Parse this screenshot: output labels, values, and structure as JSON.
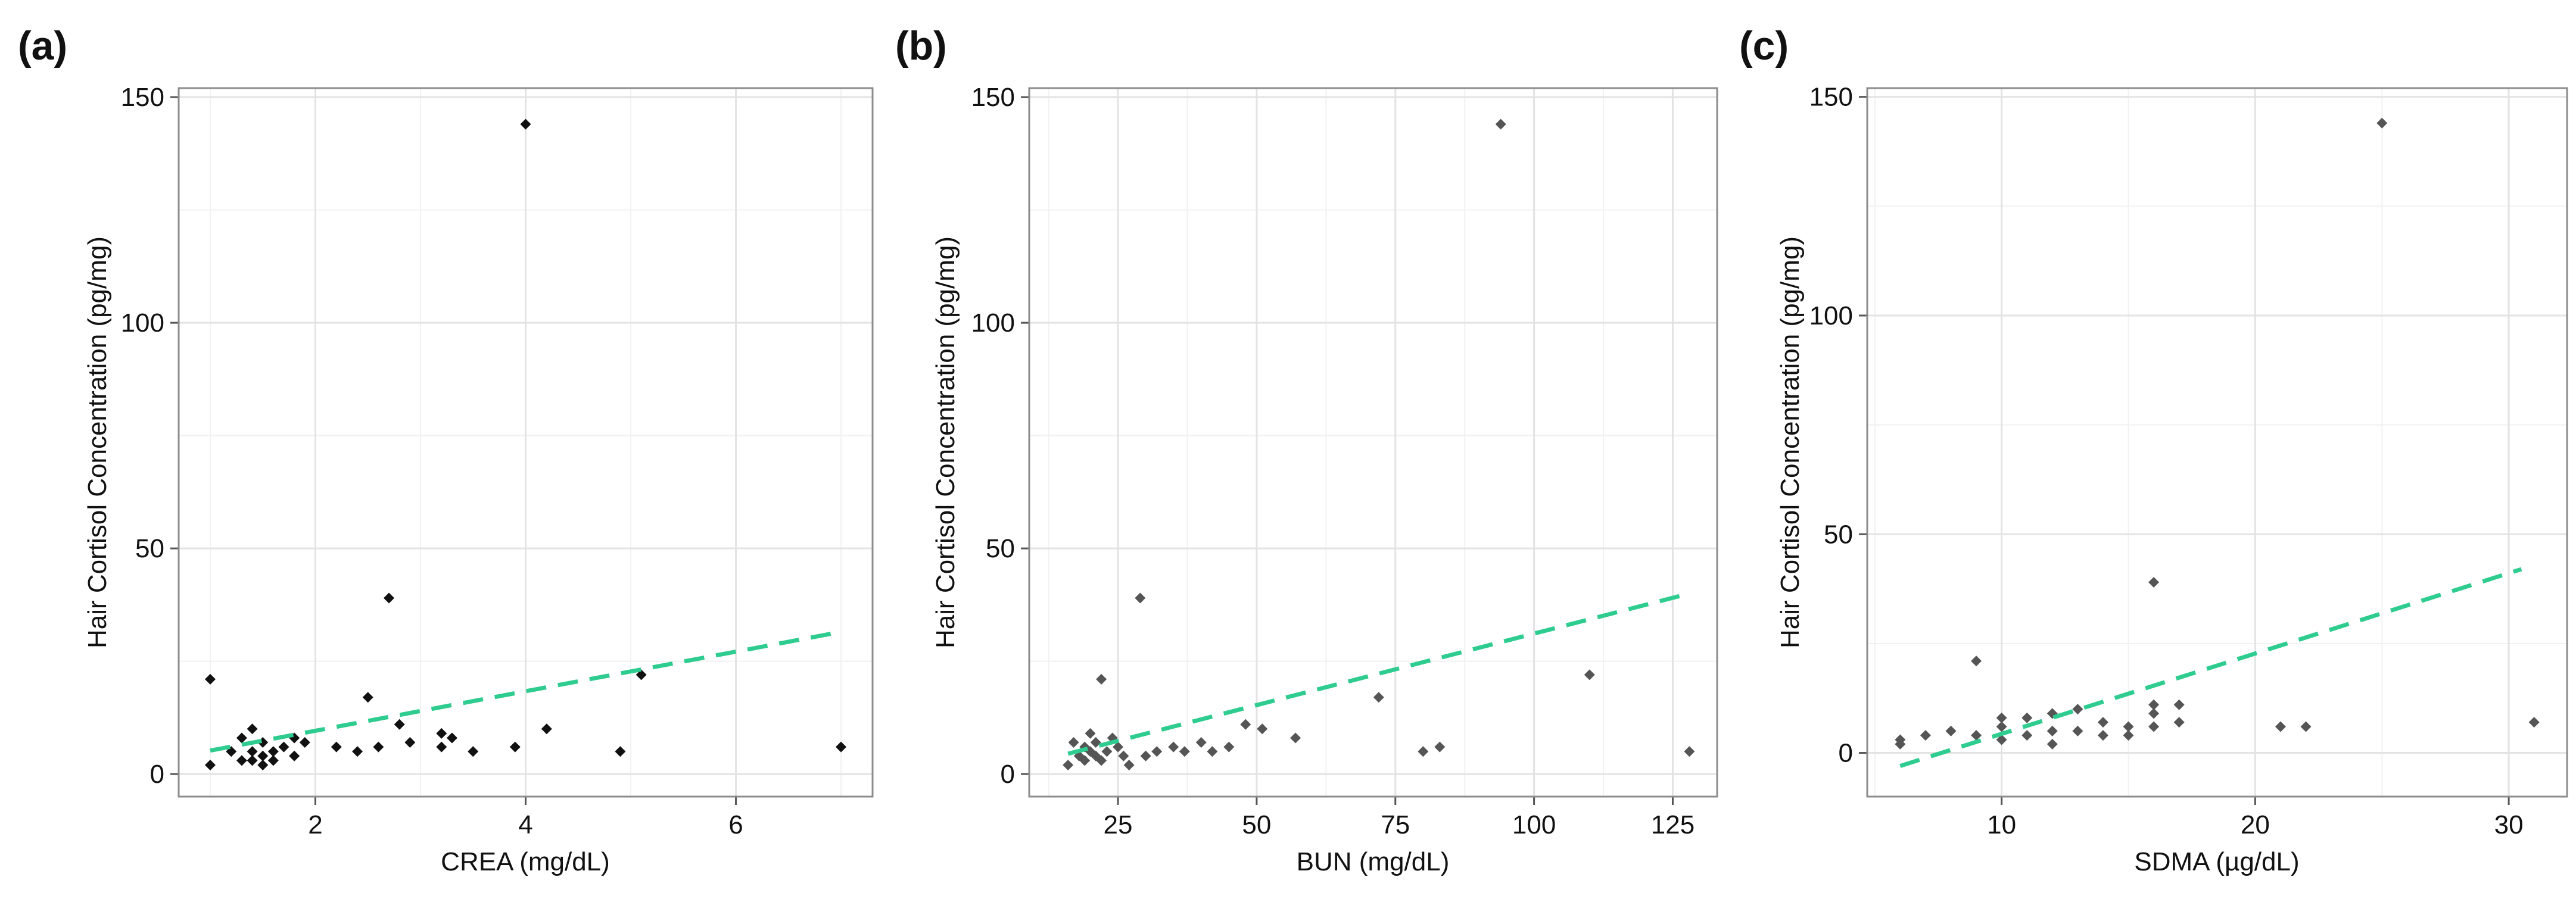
{
  "figure": {
    "panels": [
      "(a)",
      "(b)",
      "(c)"
    ]
  },
  "colors": {
    "trend": "#2ecc8f",
    "point_a": "#111111",
    "point_bc": "#555555"
  },
  "chart_data": [
    {
      "type": "scatter",
      "label": "(a)",
      "xlabel": "CREA (mg/dL)",
      "ylabel": "Hair Cortisol Concentration (pg/mg)",
      "xlim": [
        0.7,
        7.3
      ],
      "ylim": [
        -5,
        152
      ],
      "xticks": [
        2,
        4,
        6
      ],
      "xticklabels": [
        "2",
        "4",
        "6"
      ],
      "yticks": [
        0,
        50,
        100,
        150
      ],
      "yticklabels": [
        "0",
        "50",
        "100",
        "150"
      ],
      "grid": true,
      "point_color": "#111111",
      "points": [
        [
          1.0,
          21
        ],
        [
          1.0,
          2
        ],
        [
          1.2,
          5
        ],
        [
          1.3,
          8
        ],
        [
          1.3,
          3
        ],
        [
          1.4,
          10
        ],
        [
          1.4,
          5
        ],
        [
          1.4,
          3
        ],
        [
          1.5,
          7
        ],
        [
          1.5,
          4
        ],
        [
          1.5,
          2
        ],
        [
          1.6,
          5
        ],
        [
          1.6,
          3
        ],
        [
          1.7,
          6
        ],
        [
          1.8,
          4
        ],
        [
          1.8,
          8
        ],
        [
          1.9,
          7
        ],
        [
          2.2,
          6
        ],
        [
          2.4,
          5
        ],
        [
          2.5,
          17
        ],
        [
          2.6,
          6
        ],
        [
          2.7,
          39
        ],
        [
          2.8,
          11
        ],
        [
          2.9,
          7
        ],
        [
          3.2,
          9
        ],
        [
          3.2,
          6
        ],
        [
          3.3,
          8
        ],
        [
          3.5,
          5
        ],
        [
          3.9,
          6
        ],
        [
          4.0,
          144
        ],
        [
          4.2,
          10
        ],
        [
          4.9,
          5
        ],
        [
          5.1,
          22
        ],
        [
          7.0,
          6
        ]
      ],
      "trendline": {
        "x": [
          1.0,
          7.0
        ],
        "y": [
          5.2,
          31.5
        ]
      }
    },
    {
      "type": "scatter",
      "label": "(b)",
      "xlabel": "BUN (mg/dL)",
      "ylabel": "Hair Cortisol Concentration (pg/mg)",
      "xlim": [
        9,
        133
      ],
      "ylim": [
        -5,
        152
      ],
      "xticks": [
        25,
        50,
        75,
        100,
        125
      ],
      "xticklabels": [
        "25",
        "50",
        "75",
        "100",
        "125"
      ],
      "yticks": [
        0,
        50,
        100,
        150
      ],
      "yticklabels": [
        "0",
        "50",
        "100",
        "150"
      ],
      "grid": true,
      "point_color": "#555555",
      "points": [
        [
          16,
          2
        ],
        [
          17,
          7
        ],
        [
          18,
          4
        ],
        [
          19,
          6
        ],
        [
          19,
          3
        ],
        [
          20,
          9
        ],
        [
          20,
          5
        ],
        [
          21,
          4
        ],
        [
          21,
          7
        ],
        [
          22,
          21
        ],
        [
          22,
          3
        ],
        [
          23,
          5
        ],
        [
          24,
          8
        ],
        [
          25,
          6
        ],
        [
          26,
          4
        ],
        [
          27,
          2
        ],
        [
          29,
          39
        ],
        [
          30,
          4
        ],
        [
          32,
          5
        ],
        [
          35,
          6
        ],
        [
          37,
          5
        ],
        [
          40,
          7
        ],
        [
          42,
          5
        ],
        [
          45,
          6
        ],
        [
          48,
          11
        ],
        [
          51,
          10
        ],
        [
          57,
          8
        ],
        [
          72,
          17
        ],
        [
          80,
          5
        ],
        [
          83,
          6
        ],
        [
          94,
          144
        ],
        [
          110,
          22
        ],
        [
          128,
          5
        ]
      ],
      "trendline": {
        "x": [
          16,
          128
        ],
        "y": [
          4.5,
          40
        ]
      }
    },
    {
      "type": "scatter",
      "label": "(c)",
      "xlabel": "SDMA (µg/dL)",
      "ylabel": "Hair Cortisol Concentration (pg/mg)",
      "xlim": [
        4.7,
        32.3
      ],
      "ylim": [
        -10,
        152
      ],
      "xticks": [
        10,
        20,
        30
      ],
      "xticklabels": [
        "10",
        "20",
        "30"
      ],
      "yticks": [
        0,
        50,
        100,
        150
      ],
      "yticklabels": [
        "0",
        "50",
        "100",
        "150"
      ],
      "grid": true,
      "point_color": "#555555",
      "points": [
        [
          6,
          3
        ],
        [
          6,
          2
        ],
        [
          7,
          4
        ],
        [
          8,
          5
        ],
        [
          9,
          21
        ],
        [
          9,
          4
        ],
        [
          10,
          8
        ],
        [
          10,
          6
        ],
        [
          10,
          3
        ],
        [
          11,
          8
        ],
        [
          11,
          4
        ],
        [
          12,
          9
        ],
        [
          12,
          5
        ],
        [
          12,
          2
        ],
        [
          13,
          10
        ],
        [
          13,
          5
        ],
        [
          14,
          7
        ],
        [
          14,
          4
        ],
        [
          15,
          6
        ],
        [
          15,
          4
        ],
        [
          16,
          39
        ],
        [
          16,
          11
        ],
        [
          16,
          9
        ],
        [
          16,
          6
        ],
        [
          17,
          11
        ],
        [
          17,
          7
        ],
        [
          21,
          6
        ],
        [
          22,
          6
        ],
        [
          25,
          144
        ],
        [
          31,
          7
        ]
      ],
      "trendline": {
        "x": [
          6,
          30.5
        ],
        "y": [
          -3,
          42
        ]
      }
    }
  ]
}
